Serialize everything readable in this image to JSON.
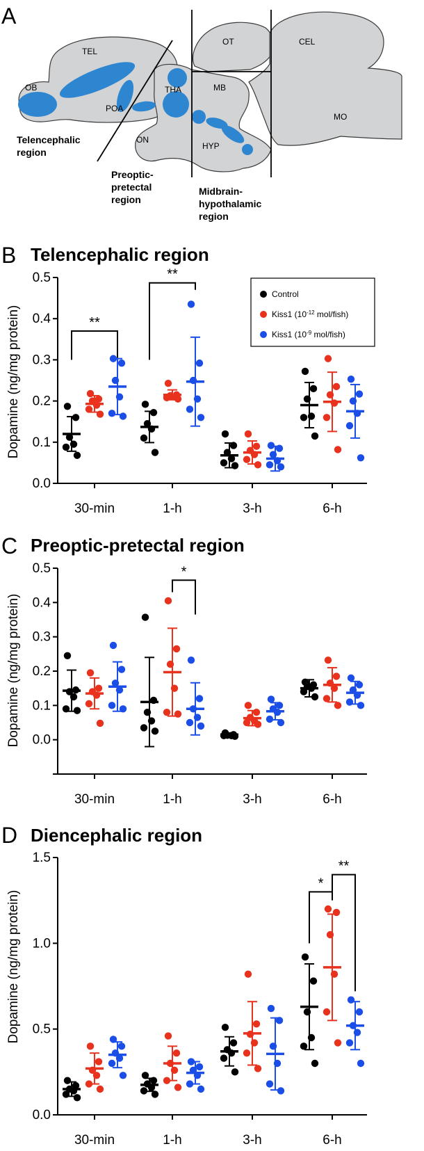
{
  "panel_a": {
    "letter": "A",
    "structures": [
      "OB",
      "TEL",
      "POA",
      "THA",
      "ON",
      "OT",
      "MB",
      "HYP",
      "CEL",
      "MO"
    ],
    "regions": {
      "telencephalic": [
        "Telencephalic",
        "region"
      ],
      "preoptic": [
        "Preoptic-",
        "pretectal",
        "region"
      ],
      "midbrain": [
        "Midbrain-",
        "hypothalamic",
        "region"
      ]
    },
    "colors": {
      "brain": "#d1d3d4",
      "highlight": "#2e86d1"
    }
  },
  "legend": {
    "control": "Control",
    "kiss_low_pre": "Kiss1 (10",
    "kiss_low_exp": "-12",
    "kiss_low_post": " mol/fish)",
    "kiss_high_pre": "Kiss1 (10",
    "kiss_high_exp": "-9",
    "kiss_high_post": " mol/fish)"
  },
  "colors": {
    "control": "#000000",
    "kiss_low": "#e8321e",
    "kiss_high": "#1a4ee6"
  },
  "chart_data": [
    {
      "type": "scatter",
      "letter": "B",
      "title": "Telencephalic region",
      "ylabel": "Dopamine (ng/mg protein)",
      "categories": [
        "30-min",
        "1-h",
        "3-h",
        "6-h"
      ],
      "ylim": [
        0,
        0.5
      ],
      "yticks": [
        "0.0",
        "0.1",
        "0.2",
        "0.3",
        "0.4",
        "0.5"
      ],
      "series": [
        {
          "key": "control",
          "points": [
            [
              0.187,
              0.16,
              0.112,
              0.095,
              0.088,
              0.068
            ],
            [
              0.192,
              0.172,
              0.145,
              0.132,
              0.11,
              0.075
            ],
            [
              0.12,
              0.092,
              0.075,
              0.06,
              0.05,
              0.043
            ],
            [
              0.272,
              0.23,
              0.205,
              0.163,
              0.16,
              0.115
            ]
          ],
          "mean": [
            0.12,
            0.137,
            0.068,
            0.19
          ],
          "sd": [
            0.042,
            0.038,
            0.03,
            0.055
          ]
        },
        {
          "key": "kiss_low",
          "points": [
            [
              0.218,
              0.205,
              0.2,
              0.19,
              0.18,
              0.168
            ],
            [
              0.243,
              0.215,
              0.213,
              0.21,
              0.208,
              0.205
            ],
            [
              0.12,
              0.09,
              0.08,
              0.07,
              0.058,
              0.045
            ],
            [
              0.303,
              0.235,
              0.215,
              0.195,
              0.16,
              0.082
            ]
          ],
          "mean": [
            0.193,
            0.215,
            0.075,
            0.198
          ],
          "sd": [
            0.02,
            0.012,
            0.028,
            0.072
          ]
        },
        {
          "key": "kiss_high",
          "points": [
            [
              0.303,
              0.292,
              0.25,
              0.21,
              0.17,
              0.163
            ],
            [
              0.435,
              0.292,
              0.25,
              0.205,
              0.18,
              0.16
            ],
            [
              0.092,
              0.085,
              0.07,
              0.055,
              0.045,
              0.04
            ],
            [
              0.253,
              0.217,
              0.2,
              0.17,
              0.14,
              0.062
            ]
          ],
          "mean": [
            0.235,
            0.247,
            0.06,
            0.175
          ],
          "sd": [
            0.068,
            0.108,
            0.03,
            0.065
          ]
        }
      ],
      "significance": [
        {
          "label": "**",
          "group": 0,
          "from": 0,
          "to": 2,
          "top": 0.37,
          "left_end": 0.3,
          "right_end": 0.305
        },
        {
          "label": "**",
          "group": 1,
          "from": 0,
          "to": 2,
          "top": 0.487,
          "left_end": 0.3,
          "right_end": 0.47
        }
      ]
    },
    {
      "type": "scatter",
      "letter": "C",
      "title": "Preoptic-pretectal region",
      "ylabel": "Dopamine (ng/mg protein)",
      "categories": [
        "30-min",
        "1-h",
        "3-h",
        "6-h"
      ],
      "ylim": [
        -0.1,
        0.5
      ],
      "yticks": [
        "0.0",
        "0.1",
        "0.2",
        "0.3",
        "0.4",
        "0.5"
      ],
      "series": [
        {
          "key": "control",
          "points": [
            [
              0.245,
              0.145,
              0.14,
              0.125,
              0.09,
              0.085
            ],
            [
              0.357,
              0.115,
              0.08,
              0.055,
              0.035,
              0.025
            ],
            [
              0.02,
              0.015,
              0.013,
              0.012,
              0.012,
              0.01
            ],
            [
              0.168,
              0.16,
              0.155,
              0.15,
              0.14,
              0.125
            ]
          ],
          "mean": [
            0.143,
            0.11,
            0.015,
            0.15
          ],
          "sd": [
            0.06,
            0.13,
            0.005,
            0.025
          ]
        },
        {
          "key": "kiss_low",
          "points": [
            [
              0.195,
              0.15,
              0.14,
              0.13,
              0.105,
              0.048
            ],
            [
              0.405,
              0.265,
              0.22,
              0.15,
              0.08,
              0.075
            ],
            [
              0.1,
              0.08,
              0.065,
              0.055,
              0.05,
              0.045
            ],
            [
              0.232,
              0.185,
              0.165,
              0.15,
              0.12,
              0.1
            ]
          ],
          "mean": [
            0.135,
            0.197,
            0.063,
            0.16
          ],
          "sd": [
            0.045,
            0.128,
            0.022,
            0.05
          ]
        },
        {
          "key": "kiss_high",
          "points": [
            [
              0.275,
              0.205,
              0.165,
              0.145,
              0.1,
              0.09
            ],
            [
              0.232,
              0.12,
              0.09,
              0.065,
              0.05,
              0.04
            ],
            [
              0.118,
              0.1,
              0.09,
              0.08,
              0.06,
              0.05
            ],
            [
              0.18,
              0.16,
              0.145,
              0.13,
              0.11,
              0.1
            ]
          ],
          "mean": [
            0.155,
            0.09,
            0.083,
            0.137
          ],
          "sd": [
            0.072,
            0.076,
            0.025,
            0.033
          ]
        }
      ],
      "significance": [
        {
          "label": "*",
          "group": 1,
          "from": 1,
          "to": 2,
          "top": 0.465,
          "left_end": 0.43,
          "right_end": 0.365
        }
      ]
    },
    {
      "type": "scatter",
      "letter": "D",
      "title": "Diencephalic region",
      "ylabel": "Dopamine (ng/mg protein)",
      "categories": [
        "30-min",
        "1-h",
        "3-h",
        "6-h"
      ],
      "ylim": [
        0,
        1.5
      ],
      "yticks": [
        "0.0",
        "0.5",
        "1.0",
        "1.5"
      ],
      "series": [
        {
          "key": "control",
          "points": [
            [
              0.2,
              0.17,
              0.15,
              0.14,
              0.12,
              0.1
            ],
            [
              0.23,
              0.2,
              0.18,
              0.16,
              0.14,
              0.12
            ],
            [
              0.51,
              0.42,
              0.38,
              0.36,
              0.33,
              0.25
            ],
            [
              0.92,
              0.78,
              0.6,
              0.45,
              0.4,
              0.3
            ]
          ],
          "mean": [
            0.15,
            0.175,
            0.37,
            0.63
          ],
          "sd": [
            0.042,
            0.038,
            0.085,
            0.25
          ]
        },
        {
          "key": "kiss_low",
          "points": [
            [
              0.4,
              0.31,
              0.26,
              0.23,
              0.18,
              0.15
            ],
            [
              0.46,
              0.36,
              0.3,
              0.26,
              0.2,
              0.16
            ],
            [
              0.82,
              0.53,
              0.47,
              0.42,
              0.36,
              0.27
            ],
            [
              1.2,
              1.18,
              1.05,
              0.82,
              0.6,
              0.42
            ]
          ],
          "mean": [
            0.27,
            0.3,
            0.475,
            0.86
          ],
          "sd": [
            0.09,
            0.1,
            0.185,
            0.31
          ]
        },
        {
          "key": "kiss_high",
          "points": [
            [
              0.44,
              0.4,
              0.36,
              0.33,
              0.3,
              0.23
            ],
            [
              0.31,
              0.28,
              0.26,
              0.23,
              0.18,
              0.15
            ],
            [
              0.62,
              0.55,
              0.4,
              0.3,
              0.18,
              0.14
            ],
            [
              0.67,
              0.6,
              0.52,
              0.48,
              0.42,
              0.3
            ]
          ],
          "mean": [
            0.35,
            0.245,
            0.355,
            0.52
          ],
          "sd": [
            0.075,
            0.065,
            0.21,
            0.14
          ]
        }
      ],
      "significance": [
        {
          "label": "*",
          "group": 3,
          "from": 0,
          "to": 1,
          "top": 1.3,
          "left_end": 1.0,
          "right_end": 1.25
        },
        {
          "label": "**",
          "group": 3,
          "from": 1,
          "to": 2,
          "top": 1.4,
          "left_end": 1.3,
          "right_end": 0.72
        }
      ]
    }
  ]
}
